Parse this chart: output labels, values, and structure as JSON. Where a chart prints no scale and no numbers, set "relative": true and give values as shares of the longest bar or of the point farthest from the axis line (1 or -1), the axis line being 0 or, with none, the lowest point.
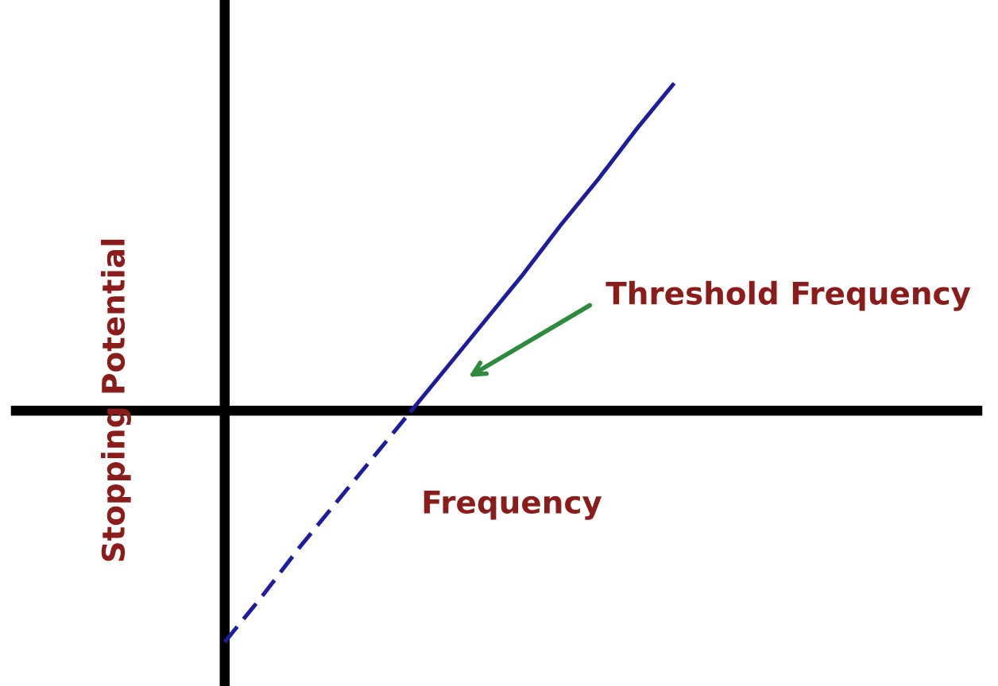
{
  "chart_data": {
    "type": "line",
    "relative": true,
    "xlabel": "Frequency",
    "ylabel": "Stopping Potential",
    "annotations": [
      "Threshold Frequency"
    ],
    "categories": [
      null,
      null,
      null,
      null,
      null,
      null,
      null,
      null,
      null,
      null,
      null,
      null,
      null
    ],
    "series": [
      {
        "color": "#1c1c9c",
        "line_style": "dashed",
        "values": [
          -0.71,
          -0.57,
          -0.42,
          -0.28,
          -0.14,
          0,
          null,
          null,
          null,
          null,
          null,
          null,
          null
        ]
      },
      {
        "color": "#1c1c9c",
        "line_style": "solid",
        "values": [
          null,
          null,
          null,
          null,
          null,
          0,
          0.14,
          0.28,
          0.42,
          0.57,
          0.71,
          0.86,
          1.0
        ]
      }
    ],
    "marker": "none"
  }
}
